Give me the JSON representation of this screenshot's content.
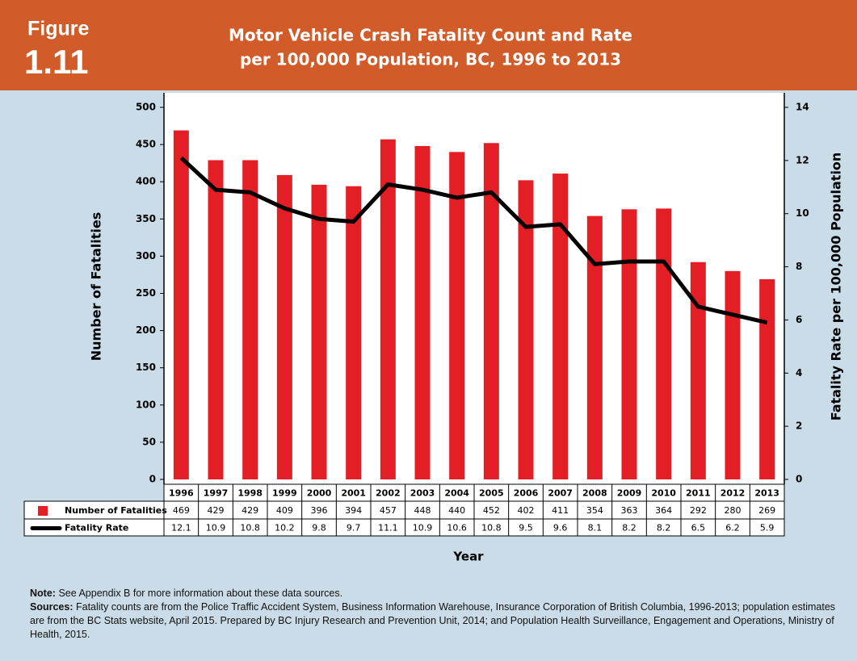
{
  "chart_data": {
    "type": "bar_line",
    "figure_label": "Figure",
    "figure_number": "1.11",
    "title": [
      "Motor Vehicle Crash Fatality Count and Rate",
      "per 100,000 Population, BC, 1996 to 2013"
    ],
    "y_label": "Number of Fatalities",
    "y2_label": "Fatality Rate per 100,000 Population",
    "x_label": "Year",
    "categories": [
      "1996",
      "1997",
      "1998",
      "1999",
      "2000",
      "2001",
      "2002",
      "2003",
      "2004",
      "2005",
      "2006",
      "2007",
      "2008",
      "2009",
      "2010",
      "2011",
      "2012",
      "2013"
    ],
    "series": [
      {
        "name": "Number of Fatalities",
        "type": "bar",
        "color": "#e31e24",
        "values": [
          469,
          429,
          429,
          409,
          396,
          394,
          457,
          448,
          440,
          452,
          402,
          411,
          354,
          363,
          364,
          292,
          280,
          269
        ]
      },
      {
        "name": "Fatality Rate",
        "type": "line",
        "axis": "y2",
        "color": "#000000",
        "values": [
          12.1,
          10.9,
          10.8,
          10.2,
          9.8,
          9.7,
          11.1,
          10.9,
          10.6,
          10.8,
          9.5,
          9.6,
          8.1,
          8.2,
          8.2,
          6.5,
          6.2,
          5.9
        ]
      }
    ],
    "ylim": [
      0,
      500
    ],
    "yticks": [
      0,
      50,
      100,
      150,
      200,
      250,
      300,
      350,
      400,
      450,
      500
    ],
    "y2lim": [
      0,
      14
    ],
    "y2ticks": [
      0,
      2,
      4,
      6,
      8,
      10,
      12,
      14
    ],
    "grid": false,
    "note": {
      "label": "Note:",
      "text": "See Appendix B for more information about these data sources."
    },
    "sources": {
      "label": "Sources:",
      "text": "Fatality counts are from the Police Traffic Accident System, Business Information Warehouse, Insurance Corporation of British Columbia, 1996-2013; population estimates are from the BC Stats website, April 2015. Prepared by BC Injury Research and Prevention Unit, 2014; and Population Health Surveillance, Engagement and Operations, Ministry of Health, 2015."
    }
  }
}
